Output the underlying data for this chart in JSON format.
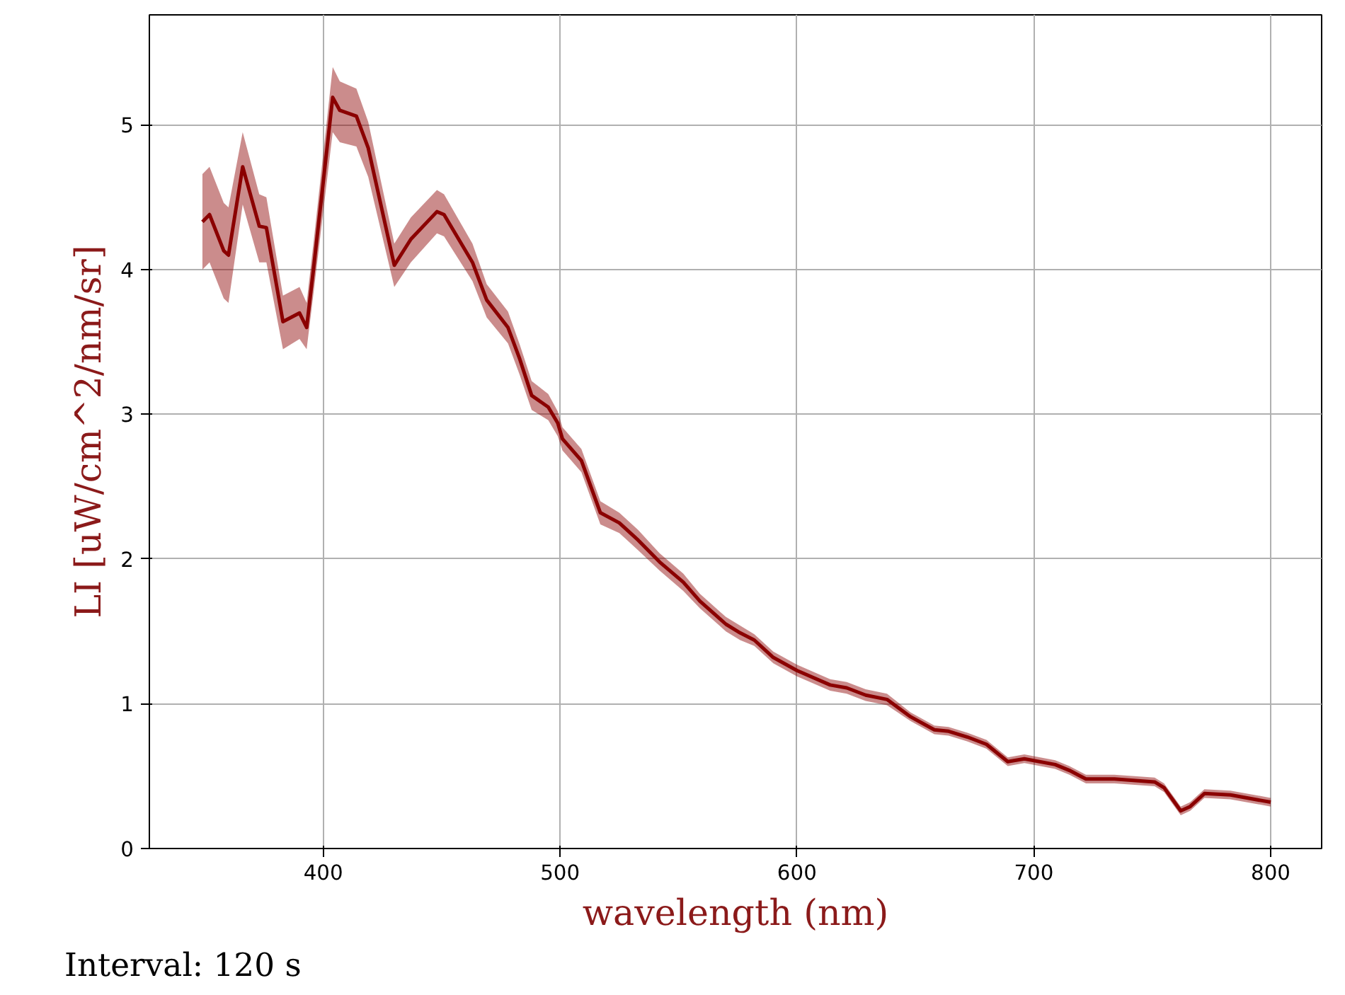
{
  "chart_data": {
    "type": "line",
    "xlabel": "wavelength (nm)",
    "ylabel": "LI [uW/cm^2/nm/sr]",
    "annotations": [
      "Interval: 120 s"
    ],
    "xlim": [
      326.6,
      821.5
    ],
    "ylim": [
      0,
      5.76
    ],
    "xticks": [
      400,
      500,
      600,
      700,
      800
    ],
    "yticks": [
      0,
      1,
      2,
      3,
      4,
      5
    ],
    "grid": true,
    "marker": "none",
    "line_style": "solid",
    "x": [
      349,
      352,
      358,
      360,
      366,
      373,
      376,
      383,
      390,
      393,
      396,
      404,
      407,
      414,
      419,
      430,
      437,
      448,
      451,
      463,
      469,
      478,
      483,
      488,
      495,
      499,
      501,
      509,
      517,
      525,
      533,
      542,
      552,
      559,
      570,
      576,
      582,
      590,
      600,
      614,
      621,
      629,
      638,
      648,
      658,
      664,
      672,
      680,
      689,
      696,
      709,
      715,
      722,
      734,
      751,
      755,
      762,
      766,
      772,
      783,
      800
    ],
    "series": [
      {
        "color": "#8b0000",
        "values": [
          4.33,
          4.38,
          4.13,
          4.1,
          4.71,
          4.3,
          4.29,
          3.64,
          3.7,
          3.6,
          4.02,
          5.19,
          5.1,
          5.06,
          4.84,
          4.03,
          4.21,
          4.4,
          4.38,
          4.05,
          3.79,
          3.6,
          3.38,
          3.13,
          3.05,
          2.94,
          2.83,
          2.68,
          2.32,
          2.25,
          2.13,
          1.98,
          1.84,
          1.71,
          1.55,
          1.49,
          1.44,
          1.32,
          1.23,
          1.13,
          1.11,
          1.06,
          1.03,
          0.91,
          0.82,
          0.81,
          0.77,
          0.72,
          0.6,
          0.62,
          0.58,
          0.54,
          0.48,
          0.48,
          0.46,
          0.42,
          0.26,
          0.29,
          0.38,
          0.37,
          0.32
        ],
        "lower": [
          4.0,
          4.05,
          3.8,
          3.77,
          4.45,
          4.05,
          4.05,
          3.45,
          3.52,
          3.45,
          3.85,
          4.95,
          4.88,
          4.85,
          4.64,
          3.88,
          4.05,
          4.25,
          4.23,
          3.92,
          3.67,
          3.49,
          3.27,
          3.03,
          2.96,
          2.85,
          2.75,
          2.6,
          2.24,
          2.18,
          2.06,
          1.92,
          1.78,
          1.66,
          1.5,
          1.44,
          1.4,
          1.28,
          1.19,
          1.09,
          1.07,
          1.02,
          0.99,
          0.88,
          0.79,
          0.78,
          0.74,
          0.69,
          0.57,
          0.59,
          0.55,
          0.51,
          0.45,
          0.45,
          0.43,
          0.39,
          0.23,
          0.26,
          0.35,
          0.34,
          0.29
        ],
        "upper": [
          4.66,
          4.71,
          4.46,
          4.43,
          4.95,
          4.52,
          4.5,
          3.82,
          3.88,
          3.77,
          4.2,
          5.4,
          5.3,
          5.25,
          5.02,
          4.18,
          4.36,
          4.55,
          4.52,
          4.18,
          3.9,
          3.71,
          3.48,
          3.23,
          3.14,
          3.02,
          2.91,
          2.76,
          2.4,
          2.32,
          2.2,
          2.04,
          1.9,
          1.76,
          1.6,
          1.54,
          1.48,
          1.36,
          1.27,
          1.17,
          1.15,
          1.1,
          1.07,
          0.94,
          0.85,
          0.84,
          0.8,
          0.75,
          0.63,
          0.65,
          0.61,
          0.57,
          0.51,
          0.51,
          0.49,
          0.45,
          0.29,
          0.32,
          0.41,
          0.4,
          0.35
        ]
      }
    ]
  }
}
